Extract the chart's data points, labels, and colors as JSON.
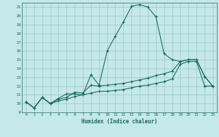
{
  "xlabel": "Humidex (Indice chaleur)",
  "bg_color": "#c5e8e8",
  "grid_color": "#a0cccc",
  "line_color": "#1a6660",
  "xlim": [
    -0.5,
    23.5
  ],
  "ylim": [
    9,
    21.5
  ],
  "xticks": [
    0,
    1,
    2,
    3,
    4,
    5,
    6,
    7,
    8,
    9,
    10,
    11,
    12,
    13,
    14,
    15,
    16,
    17,
    18,
    19,
    20,
    21,
    22,
    23
  ],
  "yticks": [
    9,
    10,
    11,
    12,
    13,
    14,
    15,
    16,
    17,
    18,
    19,
    20,
    21
  ],
  "line1_x": [
    0,
    1,
    2,
    3,
    4,
    5,
    6,
    7,
    8,
    9,
    10,
    11,
    12,
    13,
    14,
    15,
    16,
    17,
    18,
    19,
    20,
    21,
    22,
    23
  ],
  "line1_y": [
    10.2,
    9.5,
    10.7,
    10.0,
    10.6,
    11.1,
    11.1,
    11.0,
    13.3,
    12.1,
    16.0,
    17.7,
    19.3,
    21.1,
    21.3,
    21.0,
    19.9,
    15.7,
    15.0,
    14.8,
    15.0,
    15.0,
    13.1,
    12.0
  ],
  "line2_x": [
    0,
    1,
    2,
    3,
    4,
    5,
    6,
    7,
    8,
    9,
    10,
    11,
    12,
    13,
    14,
    15,
    16,
    17,
    18,
    19,
    20,
    21,
    22,
    23
  ],
  "line2_y": [
    10.2,
    9.5,
    10.7,
    10.0,
    10.5,
    10.7,
    11.3,
    11.2,
    12.1,
    12.0,
    12.1,
    12.2,
    12.3,
    12.5,
    12.7,
    12.9,
    13.2,
    13.4,
    13.7,
    14.8,
    15.0,
    15.0,
    13.1,
    12.0
  ],
  "line3_x": [
    0,
    1,
    2,
    3,
    4,
    5,
    6,
    7,
    8,
    9,
    10,
    11,
    12,
    13,
    14,
    15,
    16,
    17,
    18,
    19,
    20,
    21,
    22,
    23
  ],
  "line3_y": [
    10.2,
    9.5,
    10.7,
    10.0,
    10.3,
    10.5,
    10.8,
    11.0,
    11.2,
    11.4,
    11.4,
    11.5,
    11.6,
    11.8,
    12.0,
    12.1,
    12.3,
    12.5,
    12.8,
    14.5,
    14.8,
    14.8,
    12.0,
    12.0
  ]
}
